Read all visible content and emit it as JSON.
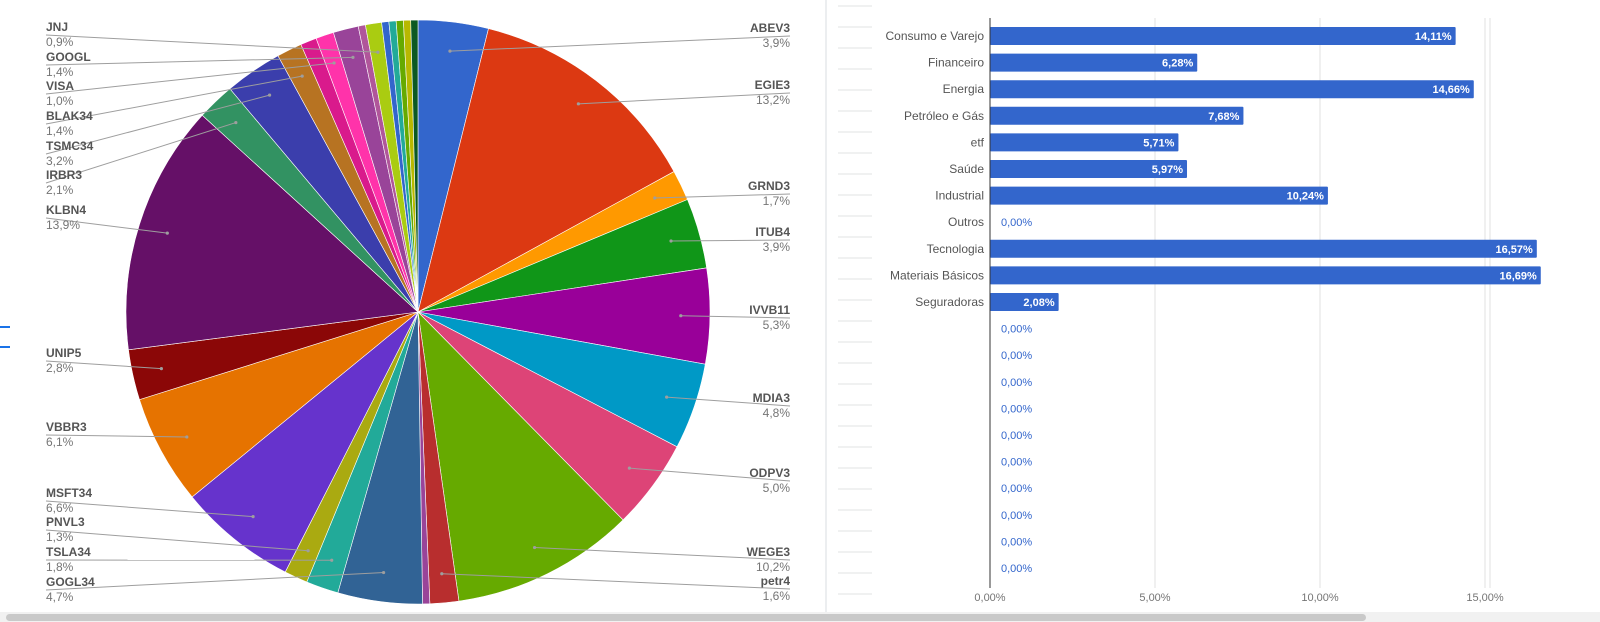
{
  "chart_data": [
    {
      "type": "pie",
      "title": "",
      "slices": [
        {
          "label": "ABEV3",
          "value": 3.9,
          "display": "3,9%",
          "color": "#3366cc"
        },
        {
          "label": "EGIE3",
          "value": 13.2,
          "display": "13,2%",
          "color": "#dc3912"
        },
        {
          "label": "GRND3",
          "value": 1.7,
          "display": "1,7%",
          "color": "#ff9900"
        },
        {
          "label": "ITUB4",
          "value": 3.9,
          "display": "3,9%",
          "color": "#109618"
        },
        {
          "label": "IVVB11",
          "value": 5.3,
          "display": "5,3%",
          "color": "#990099"
        },
        {
          "label": "MDIA3",
          "value": 4.8,
          "display": "4,8%",
          "color": "#0099c6"
        },
        {
          "label": "ODPV3",
          "value": 5.0,
          "display": "5,0%",
          "color": "#dd4477"
        },
        {
          "label": "WEGE3",
          "value": 10.2,
          "display": "10,2%",
          "color": "#66aa00"
        },
        {
          "label": "petr4",
          "value": 1.6,
          "display": "1,6%",
          "color": "#b82e2e"
        },
        {
          "label": "",
          "value": 0.4,
          "display": "",
          "color": "#994499"
        },
        {
          "label": "GOGL34",
          "value": 4.7,
          "display": "4,7%",
          "color": "#316395"
        },
        {
          "label": "TSLA34",
          "value": 1.8,
          "display": "1,8%",
          "color": "#22aa99"
        },
        {
          "label": "PNVL3",
          "value": 1.3,
          "display": "1,3%",
          "color": "#aaaa11"
        },
        {
          "label": "MSFT34",
          "value": 6.6,
          "display": "6,6%",
          "color": "#6633cc"
        },
        {
          "label": "VBBR3",
          "value": 6.1,
          "display": "6,1%",
          "color": "#e67300"
        },
        {
          "label": "UNIP5",
          "value": 2.8,
          "display": "2,8%",
          "color": "#8b0707"
        },
        {
          "label": "KLBN4",
          "value": 13.9,
          "display": "13,9%",
          "color": "#651067"
        },
        {
          "label": "IRBR3",
          "value": 2.1,
          "display": "2,1%",
          "color": "#329262"
        },
        {
          "label": "TSMC34",
          "value": 3.2,
          "display": "3,2%",
          "color": "#3b3eac"
        },
        {
          "label": "BLAK34",
          "value": 1.4,
          "display": "1,4%",
          "color": "#b77322"
        },
        {
          "label": "",
          "value": 0.9,
          "display": "",
          "color": "#d91a8c"
        },
        {
          "label": "VISA",
          "value": 1.0,
          "display": "1,0%",
          "color": "#ff33aa"
        },
        {
          "label": "GOOGL",
          "value": 1.4,
          "display": "1,4%",
          "color": "#994499"
        },
        {
          "label": "",
          "value": 0.4,
          "display": "",
          "color": "#b0569a"
        },
        {
          "label": "JNJ",
          "value": 0.9,
          "display": "0,9%",
          "color": "#aacc11"
        },
        {
          "label": "",
          "value": 0.4,
          "display": "",
          "color": "#3366cc"
        },
        {
          "label": "",
          "value": 0.4,
          "display": "",
          "color": "#22aa99"
        },
        {
          "label": "",
          "value": 0.4,
          "display": "",
          "color": "#66aa00"
        },
        {
          "label": "",
          "value": 0.4,
          "display": "",
          "color": "#b8b800"
        },
        {
          "label": "",
          "value": 0.4,
          "display": "",
          "color": "#0c5922"
        }
      ],
      "right_labels": [
        {
          "label": "ABEV3",
          "display": "3,9%",
          "slice": 0
        },
        {
          "label": "EGIE3",
          "display": "13,2%",
          "slice": 1
        },
        {
          "label": "GRND3",
          "display": "1,7%",
          "slice": 2
        },
        {
          "label": "ITUB4",
          "display": "3,9%",
          "slice": 3
        },
        {
          "label": "IVVB11",
          "display": "5,3%",
          "slice": 4
        },
        {
          "label": "MDIA3",
          "display": "4,8%",
          "slice": 5
        },
        {
          "label": "ODPV3",
          "display": "5,0%",
          "slice": 6
        },
        {
          "label": "WEGE3",
          "display": "10,2%",
          "slice": 7
        },
        {
          "label": "petr4",
          "display": "1,6%",
          "slice": 8
        }
      ],
      "left_labels": [
        {
          "label": "JNJ",
          "display": "0,9%",
          "slice": 24
        },
        {
          "label": "GOOGL",
          "display": "1,4%",
          "slice": 22
        },
        {
          "label": "VISA",
          "display": "1,0%",
          "slice": 21
        },
        {
          "label": "BLAK34",
          "display": "1,4%",
          "slice": 19
        },
        {
          "label": "TSMC34",
          "display": "3,2%",
          "slice": 18
        },
        {
          "label": "IRBR3",
          "display": "2,1%",
          "slice": 17
        },
        {
          "label": "KLBN4",
          "display": "13,9%",
          "slice": 16
        },
        {
          "label": "UNIP5",
          "display": "2,8%",
          "slice": 15
        },
        {
          "label": "VBBR3",
          "display": "6,1%",
          "slice": 14
        },
        {
          "label": "MSFT34",
          "display": "6,6%",
          "slice": 13
        },
        {
          "label": "PNVL3",
          "display": "1,3%",
          "slice": 12
        },
        {
          "label": "TSLA34",
          "display": "1,8%",
          "slice": 11
        },
        {
          "label": "GOGL34",
          "display": "4,7%",
          "slice": 10
        }
      ]
    },
    {
      "type": "bar",
      "orientation": "horizontal",
      "title": "",
      "bar_color": "#3366cc",
      "categories": [
        "Consumo e Varejo",
        "Financeiro",
        "Energia",
        "Petróleo e Gás",
        "etf",
        "Saúde",
        "Industrial",
        "Outros",
        "Tecnologia",
        "Materiais Básicos",
        "Seguradoras",
        "",
        "",
        "",
        "",
        "",
        "",
        "",
        "",
        "",
        ""
      ],
      "values": [
        14.11,
        6.28,
        14.66,
        7.68,
        5.71,
        5.97,
        10.24,
        0,
        16.57,
        16.69,
        2.08,
        0,
        0,
        0,
        0,
        0,
        0,
        0,
        0,
        0,
        0
      ],
      "value_labels": [
        "14,11%",
        "6,28%",
        "14,66%",
        "7,68%",
        "5,71%",
        "5,97%",
        "10,24%",
        "0,00%",
        "16,57%",
        "16,69%",
        "2,08%",
        "0,00%",
        "0,00%",
        "0,00%",
        "0,00%",
        "0,00%",
        "0,00%",
        "0,00%",
        "0,00%",
        "0,00%",
        "0,00%"
      ],
      "xlim": [
        0,
        17.5
      ],
      "xticks": [
        0,
        5,
        10,
        15
      ],
      "xtick_labels": [
        "0,00%",
        "5,00%",
        "10,00%",
        "15,00%"
      ],
      "grid": true
    }
  ]
}
